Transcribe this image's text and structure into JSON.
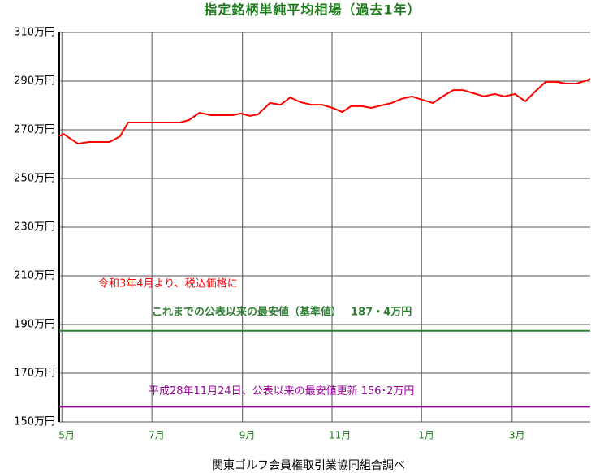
{
  "chart_data": {
    "type": "line",
    "title": "指定銘柄単純平均相場（過去1年）",
    "x": [
      0,
      0.39,
      1.79,
      2.88,
      4.83,
      5.84,
      6.62,
      11.6,
      12.46,
      13.47,
      14.56,
      16.66,
      17.44,
      18.3,
      19.08,
      20.24,
      21.26,
      22.19,
      23.2,
      24.22,
      25.23,
      26.24,
      27.18,
      28.03,
      29.04,
      29.98,
      30.91,
      31.92,
      32.86,
      33.87,
      34.88,
      35.89,
      36.83,
      37.84,
      38.78,
      39.79,
      40.8,
      41.81,
      42.75,
      43.76,
      44.77,
      45.71,
      46.72,
      47.73,
      48.67,
      49.68,
      50.69,
      51
    ],
    "series": [
      {
        "color": "#ff0000",
        "values": [
          267.3,
          268.3,
          264.3,
          265,
          265,
          267.3,
          273,
          273,
          274,
          277,
          276,
          276,
          276.7,
          275.7,
          276.3,
          281,
          280.3,
          283.3,
          281.3,
          280.3,
          280.3,
          279,
          277.3,
          279.7,
          279.7,
          279,
          280,
          281,
          282.7,
          283.7,
          282.3,
          281,
          283.7,
          286.3,
          286.3,
          285,
          283.7,
          284.7,
          283.7,
          284.7,
          281.7,
          285.7,
          289.7,
          289.7,
          289,
          289,
          290.3,
          291
        ]
      }
    ],
    "xlim": [
      0,
      51
    ],
    "xticks": [
      {
        "value": 0.25,
        "label": "5月"
      },
      {
        "value": 8.9,
        "label": "7月"
      },
      {
        "value": 17.6,
        "label": "9月"
      },
      {
        "value": 26.2,
        "label": "11月"
      },
      {
        "value": 34.8,
        "label": "1月"
      },
      {
        "value": 43.5,
        "label": "3月"
      }
    ],
    "ylim": [
      150,
      310
    ],
    "yticks": [
      {
        "value": 150,
        "label": "150万円"
      },
      {
        "value": 170,
        "label": "170万円"
      },
      {
        "value": 190,
        "label": "190万円"
      },
      {
        "value": 210,
        "label": "210万円"
      },
      {
        "value": 230,
        "label": "230万円"
      },
      {
        "value": 250,
        "label": "250万円"
      },
      {
        "value": 270,
        "label": "270万円"
      },
      {
        "value": 290,
        "label": "290万円"
      },
      {
        "value": 310,
        "label": "310万円"
      }
    ],
    "grid": true,
    "reference_lines": [
      {
        "value": 187.4,
        "label": "これまでの公表以来の最安値（基準値）　 187・4万円",
        "color": "#2e7d32"
      },
      {
        "value": 156.2,
        "label": "平成28年11月24日、公表以来の最安値更新 156･2万円",
        "color": "#990099"
      }
    ],
    "annotation": "令和3年4月より、税込価格に",
    "source": "関東ゴルフ会員権取引業協同組合調べ"
  }
}
